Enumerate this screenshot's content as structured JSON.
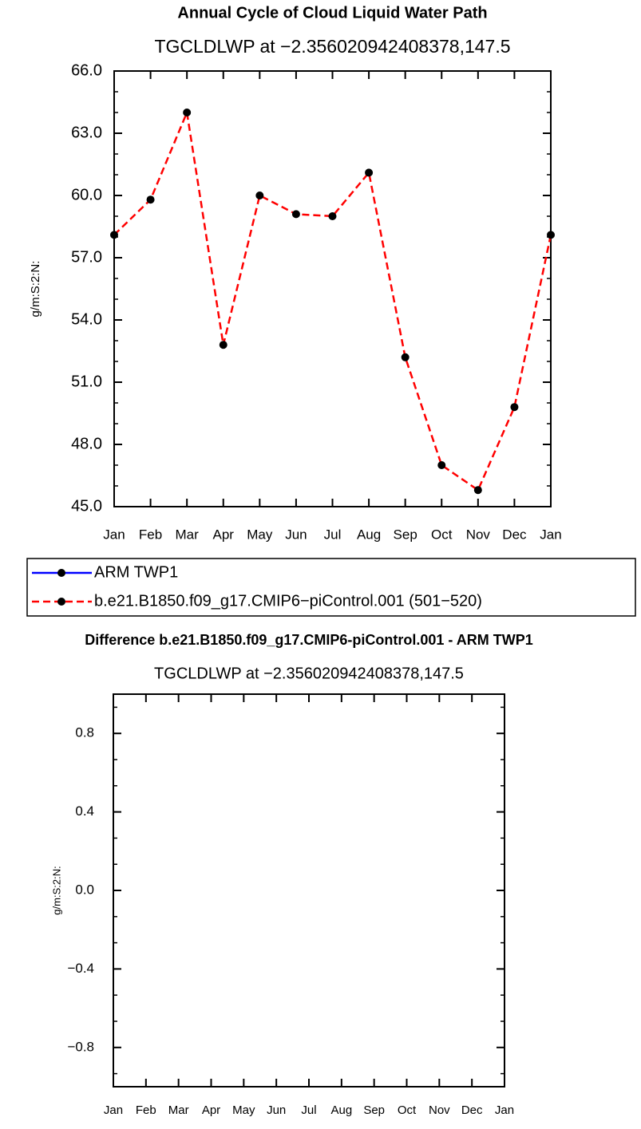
{
  "chart_data": [
    {
      "type": "line",
      "title": "Annual Cycle of Cloud Liquid Water Path",
      "subtitle": "TGCLDLWP  at  −2.356020942408378,147.5",
      "y_label": "g/m:S:2:N:",
      "categories": [
        "Jan",
        "Feb",
        "Mar",
        "Apr",
        "May",
        "Jun",
        "Jul",
        "Aug",
        "Sep",
        "Oct",
        "Nov",
        "Dec",
        "Jan"
      ],
      "series": [
        {
          "name": "ARM  TWP1",
          "color": "#0000ff",
          "linestyle": "solid",
          "marker_color": "#000000",
          "values": [
            null,
            null,
            null,
            null,
            null,
            null,
            null,
            null,
            null,
            null,
            null,
            null,
            null
          ]
        },
        {
          "name": "b.e21.B1850.f09_g17.CMIP6−piControl.001  (501−520)",
          "color": "#ff0000",
          "linestyle": "dashed",
          "marker_color": "#000000",
          "values": [
            58.1,
            59.8,
            64.0,
            52.8,
            60.0,
            59.1,
            59.0,
            61.1,
            52.2,
            47.0,
            45.8,
            49.8,
            58.1
          ]
        }
      ],
      "ylim": [
        45,
        66
      ],
      "yticks": [
        {
          "value": 45,
          "label": "45.0"
        },
        {
          "value": 48,
          "label": "48.0"
        },
        {
          "value": 51,
          "label": "51.0"
        },
        {
          "value": 54,
          "label": "54.0"
        },
        {
          "value": 57,
          "label": "57.0"
        },
        {
          "value": 60,
          "label": "60.0"
        },
        {
          "value": 63,
          "label": "63.0"
        },
        {
          "value": 66,
          "label": "66.0"
        }
      ],
      "legend": "bottom"
    },
    {
      "type": "line",
      "title": "Difference b.e21.B1850.f09_g17.CMIP6-piControl.001 - ARM TWP1",
      "subtitle": "TGCLDLWP  at  −2.356020942408378,147.5",
      "y_label": "g/m:S:2:N:",
      "categories": [
        "Jan",
        "Feb",
        "Mar",
        "Apr",
        "May",
        "Jun",
        "Jul",
        "Aug",
        "Sep",
        "Oct",
        "Nov",
        "Dec",
        "Jan"
      ],
      "ylim": [
        -1,
        1
      ],
      "yticks": [
        {
          "value": -0.8,
          "label": "−0.8"
        },
        {
          "value": -0.4,
          "label": "−0.4"
        },
        {
          "value": 0,
          "label": "0.0"
        },
        {
          "value": 0.4,
          "label": "0.4"
        },
        {
          "value": 0.8,
          "label": "0.8"
        }
      ]
    }
  ]
}
